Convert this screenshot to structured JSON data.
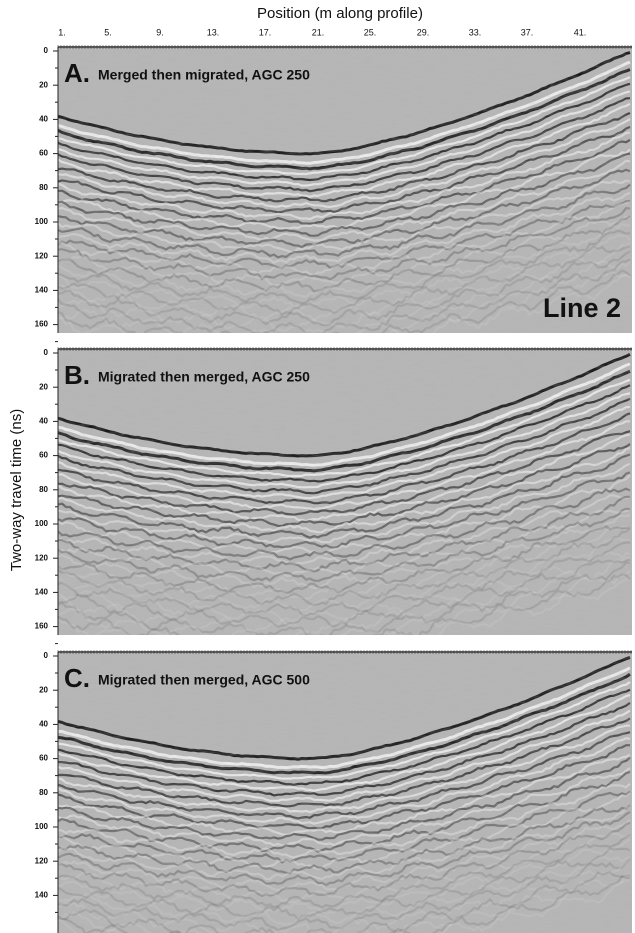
{
  "x_axis": {
    "label": "Position (m along profile)",
    "ticks": [
      "1.",
      "5.",
      "9.",
      "13.",
      "17.",
      "21.",
      "25.",
      "29.",
      "33.",
      "37.",
      "41."
    ]
  },
  "y_axis": {
    "label": "Two-way travel time (ns)"
  },
  "panels": [
    {
      "letter": "A.",
      "title": "Merged then migrated, AGC 250",
      "note": "Line 2",
      "yticks": [
        "0",
        "20",
        "40",
        "60",
        "80",
        "100",
        "120",
        "140",
        "160"
      ]
    },
    {
      "letter": "B.",
      "title": "Migrated then merged, AGC 250",
      "yticks": [
        "0",
        "20",
        "40",
        "60",
        "80",
        "100",
        "120",
        "140",
        "160"
      ]
    },
    {
      "letter": "C.",
      "title": "Migrated then merged, AGC 500",
      "yticks": [
        "0",
        "20",
        "40",
        "60",
        "80",
        "100",
        "120",
        "140"
      ]
    }
  ]
}
